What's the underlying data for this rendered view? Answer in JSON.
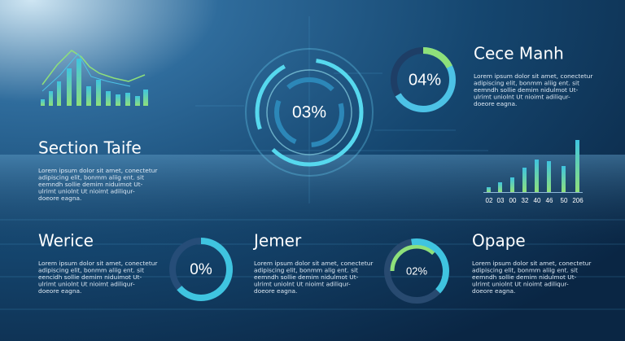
{
  "hero": {
    "value": "03%"
  },
  "gauges": [
    {
      "value": "04%"
    },
    {
      "value": "0%"
    },
    {
      "value": "02%"
    }
  ],
  "bar_labels": [
    "02",
    "03",
    "00",
    "32",
    "40",
    "46",
    "50",
    "206"
  ],
  "sections": [
    {
      "title": "Cece Manh",
      "lines": [
        "Lorem ipsum dolor sit amet, conectetur",
        "adipiscing elit, bonmm aliig ent. sit",
        "eemndh sollie demim nidulmot Ut-",
        "ulrimt uniolnt Ut nioimt adiliqur-",
        "doeore eagna."
      ]
    },
    {
      "title": "Section Taife",
      "lines": [
        "Lorem ipsum dolor sit amet, conectetur",
        "adipiscing elit, bonmm aliig ent. sit",
        "eemndh sollie demim niduimot Ut-",
        "ulrimt uniolnt Ut nioimt adiliqur-",
        "doeore eagna."
      ]
    },
    {
      "title": "Werice",
      "lines": [
        "Lorem ipsum dolor sit amet, conectetur",
        "adipiscing elit, bonmm aliig ent. sit",
        "eencidh sollie demim niduimot Ut-",
        "ulrimt uniolnt Ut nioimt adiliqur-",
        "doeore eagna."
      ]
    },
    {
      "title": "Jemer",
      "lines": [
        "Lorem ipsum dolor sit amet, conectetur",
        "adipiscing elit, bonmm alig ent. sit",
        "eemndh sollie demim nidulmot Ut-",
        "ulrimt uniolnt Ut nioimt adiliqur-",
        "doeore eagna."
      ]
    },
    {
      "title": "Opape",
      "lines": [
        "Lorem ipsum dolor sit amet, conectetur",
        "adipiscing elit, bonmm aliig ent. sit",
        "eemndh sollie demim nidulmot Ut-",
        "ulrimt uniolnt Ut nioimt adiliqur-",
        "doeore eagna."
      ]
    }
  ]
}
